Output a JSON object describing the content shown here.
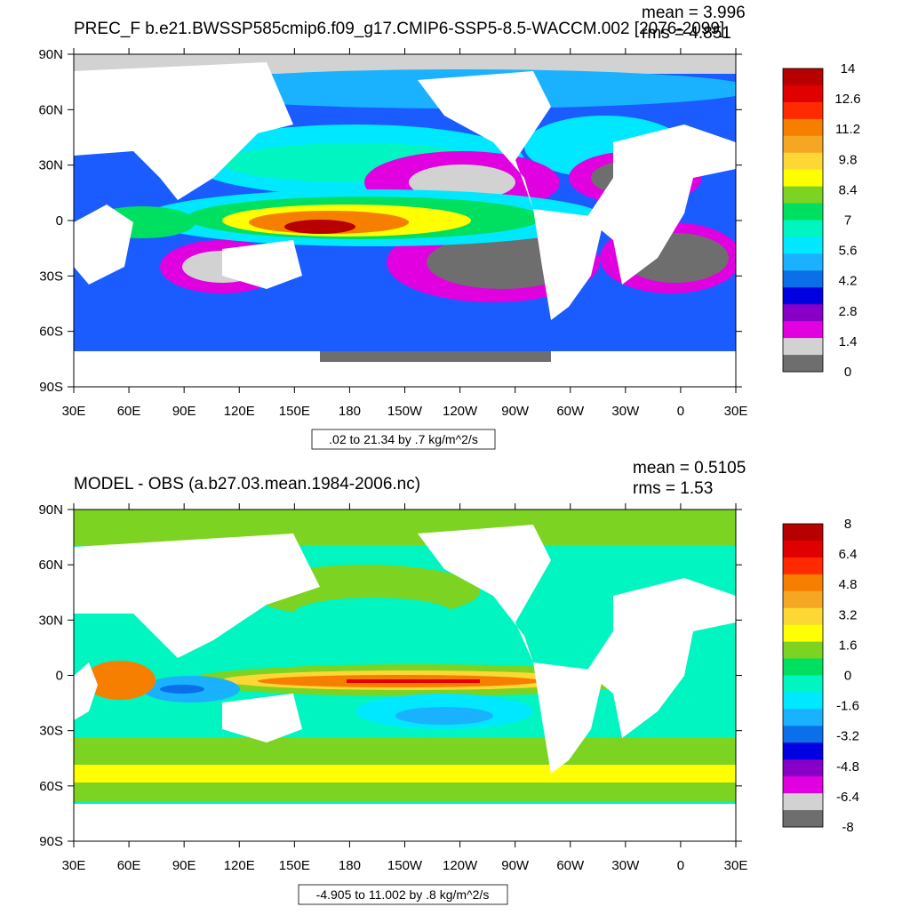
{
  "chart_data": [
    {
      "type": "heatmap",
      "title": "PREC_F b.e21.BWSSP585cmip6.f09_g17.CMIP6-SSP5-8.5-WACCM.002 [2076-2099]",
      "stats": {
        "mean": "mean = 3.996",
        "rms": "rms = 4.851"
      },
      "range_label": ".02 to 21.34 by .7 kg/m^2/s",
      "x_ticks": [
        "30E",
        "60E",
        "90E",
        "120E",
        "150E",
        "180",
        "150W",
        "120W",
        "90W",
        "60W",
        "30W",
        "0",
        "30E"
      ],
      "y_ticks": [
        "90N",
        "60N",
        "30N",
        "0",
        "30S",
        "60S",
        "90S"
      ],
      "colorbar": {
        "labels": [
          "14",
          "12.6",
          "11.2",
          "9.8",
          "8.4",
          "7",
          "5.6",
          "4.2",
          "2.8",
          "1.4",
          "0"
        ],
        "colors": [
          "#b80000",
          "#e00000",
          "#ff2a00",
          "#f77f00",
          "#f5a623",
          "#fdd835",
          "#ffff00",
          "#7cd321",
          "#00e060",
          "#00f5c0",
          "#00e8ff",
          "#1ab2ff",
          "#0a6fe8",
          "#0000e0",
          "#8800c8",
          "#e000e0",
          "#d2d2d2",
          "#6e6e6e"
        ]
      },
      "levels": [
        0,
        1.4,
        2.8,
        4.2,
        5.6,
        7,
        8.4,
        9.8,
        11.2,
        12.6,
        14
      ]
    },
    {
      "type": "heatmap",
      "title": "MODEL - OBS (a.b27.03.mean.1984-2006.nc)",
      "stats": {
        "mean": "mean = 0.5105",
        "rms": "rms = 1.53"
      },
      "range_label": "-4.905 to 11.002 by .8 kg/m^2/s",
      "x_ticks": [
        "30E",
        "60E",
        "90E",
        "120E",
        "150E",
        "180",
        "150W",
        "120W",
        "90W",
        "60W",
        "30W",
        "0",
        "30E"
      ],
      "y_ticks": [
        "90N",
        "60N",
        "30N",
        "0",
        "30S",
        "60S",
        "90S"
      ],
      "colorbar": {
        "labels": [
          "8",
          "6.4",
          "4.8",
          "3.2",
          "1.6",
          "0",
          "-1.6",
          "-3.2",
          "-4.8",
          "-6.4",
          "-8"
        ],
        "colors": [
          "#b80000",
          "#e00000",
          "#ff2a00",
          "#f77f00",
          "#f5a623",
          "#fdd835",
          "#ffff00",
          "#7cd321",
          "#00e060",
          "#00f5c0",
          "#00e8ff",
          "#1ab2ff",
          "#0a6fe8",
          "#0000e0",
          "#8800c8",
          "#e000e0",
          "#d2d2d2",
          "#6e6e6e"
        ]
      },
      "levels": [
        -8,
        -6.4,
        -4.8,
        -3.2,
        -1.6,
        0,
        1.6,
        3.2,
        4.8,
        6.4,
        8
      ]
    }
  ]
}
